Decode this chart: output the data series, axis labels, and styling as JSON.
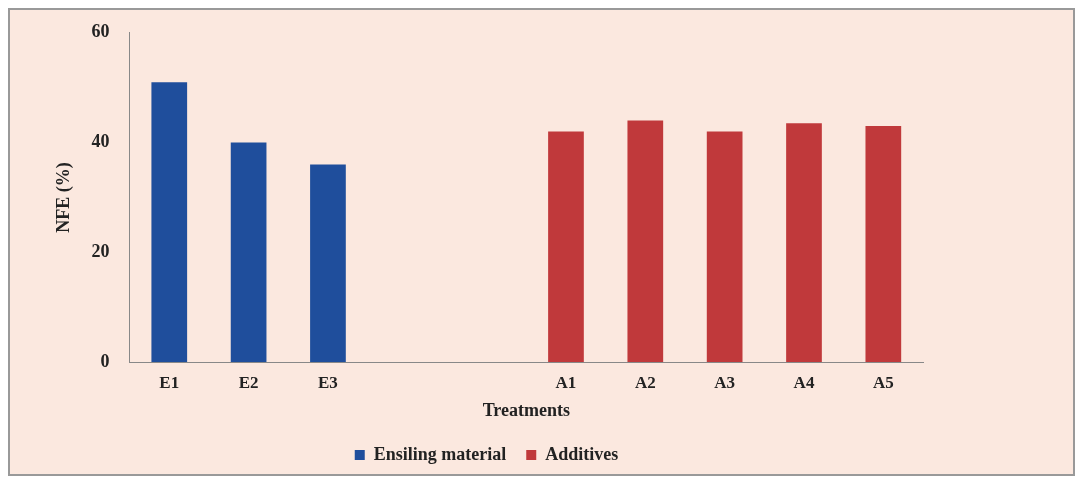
{
  "chart_data": {
    "type": "bar",
    "xlabel": "Treatments",
    "ylabel": "NFE (%)",
    "categories": [
      "E1",
      "E2",
      "E3",
      null,
      null,
      "A1",
      "A2",
      "A3",
      "A4",
      "A5"
    ],
    "series": [
      {
        "name": "Ensiling material",
        "color": "#1f4e9c",
        "values": [
          51,
          40,
          36,
          null,
          null,
          null,
          null,
          null,
          null,
          null
        ]
      },
      {
        "name": "Additives",
        "color": "#c0393b",
        "values": [
          null,
          null,
          null,
          null,
          null,
          42,
          44,
          42,
          43.5,
          43
        ]
      }
    ],
    "ylim": [
      0,
      60
    ],
    "yticks": [
      0,
      20,
      40,
      60
    ],
    "grid": false,
    "legend": "bottom"
  }
}
